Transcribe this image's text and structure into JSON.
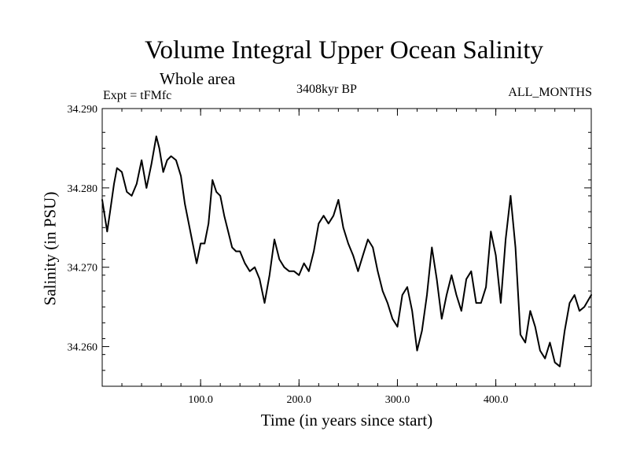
{
  "chart_data": {
    "type": "line",
    "title": "Volume Integral Upper Ocean Salinity",
    "subtitle": "Whole area",
    "experiment": "Expt = tFMfc",
    "period": "3408kyr BP",
    "months": "ALL_MONTHS",
    "xlabel": "Time (in years since start)",
    "ylabel": "Salinity (in PSU)",
    "xlim": [
      0,
      497
    ],
    "ylim": [
      34.255,
      34.29
    ],
    "x_ticks": [
      100,
      200,
      300,
      400
    ],
    "x_tick_labels": [
      "100.0",
      "200.0",
      "300.0",
      "400.0"
    ],
    "x_minor_step": 20,
    "y_ticks": [
      34.26,
      34.27,
      34.28,
      34.29
    ],
    "y_tick_labels": [
      "34.260",
      "34.270",
      "34.280",
      "34.290"
    ],
    "y_minor_step": 0.002,
    "grid": false,
    "line_color": "#000000",
    "series": [
      {
        "name": "Salinity",
        "x": [
          0,
          5,
          8,
          12,
          15,
          20,
          25,
          30,
          35,
          40,
          45,
          50,
          55,
          58,
          62,
          66,
          70,
          75,
          80,
          84,
          88,
          92,
          96,
          100,
          104,
          108,
          112,
          116,
          120,
          124,
          128,
          132,
          136,
          140,
          145,
          150,
          155,
          160,
          165,
          170,
          175,
          180,
          185,
          190,
          195,
          200,
          205,
          210,
          215,
          220,
          225,
          230,
          235,
          240,
          245,
          250,
          255,
          260,
          265,
          270,
          275,
          280,
          285,
          290,
          295,
          300,
          305,
          310,
          315,
          320,
          325,
          330,
          335,
          340,
          345,
          350,
          355,
          360,
          365,
          370,
          375,
          380,
          385,
          390,
          395,
          400,
          405,
          410,
          415,
          420,
          425,
          430,
          435,
          440,
          445,
          450,
          455,
          460,
          465,
          470,
          475,
          480,
          485,
          490,
          497
        ],
        "values": [
          34.2785,
          34.2745,
          34.277,
          34.2805,
          34.2825,
          34.282,
          34.2795,
          34.279,
          34.2805,
          34.2835,
          34.28,
          34.283,
          34.2865,
          34.285,
          34.282,
          34.2835,
          34.284,
          34.2835,
          34.2815,
          34.278,
          34.2755,
          34.273,
          34.2705,
          34.273,
          34.273,
          34.2755,
          34.281,
          34.2795,
          34.279,
          34.2765,
          34.2745,
          34.2725,
          34.272,
          34.272,
          34.2705,
          34.2695,
          34.27,
          34.2685,
          34.2655,
          34.269,
          34.2735,
          34.271,
          34.27,
          34.2695,
          34.2695,
          34.269,
          34.2705,
          34.2695,
          34.272,
          34.2755,
          34.2765,
          34.2755,
          34.2765,
          34.2785,
          34.275,
          34.273,
          34.2715,
          34.2695,
          34.2715,
          34.2735,
          34.2725,
          34.2695,
          34.267,
          34.2655,
          34.2635,
          34.2625,
          34.2665,
          34.2675,
          34.2645,
          34.2595,
          34.262,
          34.2665,
          34.2725,
          34.2685,
          34.2635,
          34.2665,
          34.269,
          34.2665,
          34.2645,
          34.2685,
          34.2695,
          34.2655,
          34.2655,
          34.2675,
          34.2745,
          34.2715,
          34.2655,
          34.2735,
          34.279,
          34.2725,
          34.2615,
          34.2605,
          34.2645,
          34.2625,
          34.2595,
          34.2585,
          34.2605,
          34.258,
          34.2575,
          34.262,
          34.2655,
          34.2665,
          34.2645,
          34.265,
          34.2665
        ]
      }
    ]
  }
}
